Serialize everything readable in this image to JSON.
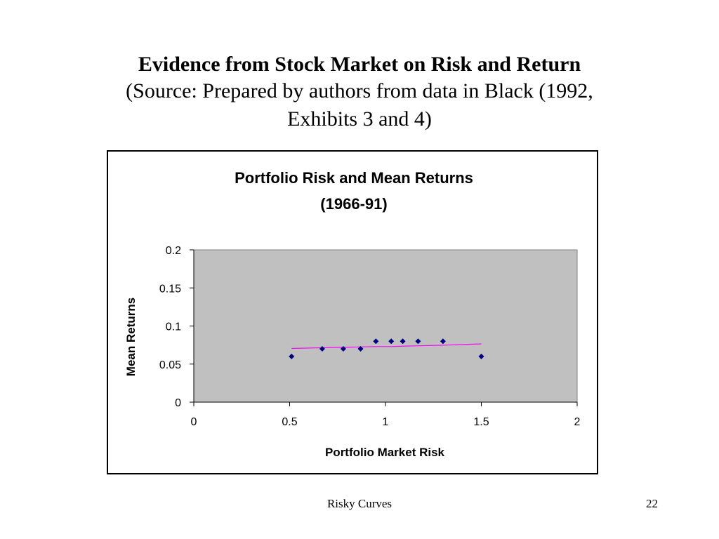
{
  "slide": {
    "title": "Evidence from Stock Market on Risk and Return",
    "subtitle_line1": "(Source: Prepared by authors from data in Black (1992,",
    "subtitle_line2": "Exhibits 3 and 4)",
    "footer_text": "Risky Curves",
    "page_number": "22"
  },
  "chart_data": {
    "type": "scatter",
    "title_line1": "Portfolio Risk and Mean Returns",
    "title_line2": "(1966-91)",
    "xlabel": "Portfolio Market Risk",
    "ylabel": "Mean Returns",
    "xlim": [
      0,
      2
    ],
    "ylim": [
      0,
      0.2
    ],
    "x_ticks": [
      0,
      0.5,
      1,
      1.5,
      2
    ],
    "x_tick_labels": [
      "0",
      "0.5",
      "1",
      "1.5",
      "2"
    ],
    "y_ticks": [
      0,
      0.05,
      0.1,
      0.15,
      0.2
    ],
    "y_tick_labels": [
      "0",
      "0.05",
      "0.1",
      "0.15",
      "0.2"
    ],
    "grid": false,
    "legend": "none",
    "plot_area_color": "#C0C0C0",
    "series": [
      {
        "marker": "diamond",
        "color": "#000080",
        "points": [
          {
            "x": 0.51,
            "y": 0.06
          },
          {
            "x": 0.67,
            "y": 0.07
          },
          {
            "x": 0.78,
            "y": 0.07
          },
          {
            "x": 0.87,
            "y": 0.07
          },
          {
            "x": 0.95,
            "y": 0.08
          },
          {
            "x": 1.03,
            "y": 0.08
          },
          {
            "x": 1.09,
            "y": 0.08
          },
          {
            "x": 1.17,
            "y": 0.08
          },
          {
            "x": 1.3,
            "y": 0.08
          },
          {
            "x": 1.5,
            "y": 0.06
          }
        ]
      }
    ],
    "trendline": {
      "color": "#FF00FF",
      "points": [
        {
          "x": 0.51,
          "y": 0.0705
        },
        {
          "x": 0.67,
          "y": 0.0715
        },
        {
          "x": 0.78,
          "y": 0.072
        },
        {
          "x": 0.87,
          "y": 0.0725
        },
        {
          "x": 0.95,
          "y": 0.073
        },
        {
          "x": 1.03,
          "y": 0.073
        },
        {
          "x": 1.09,
          "y": 0.0735
        },
        {
          "x": 1.17,
          "y": 0.074
        },
        {
          "x": 1.3,
          "y": 0.0748
        },
        {
          "x": 1.5,
          "y": 0.0765
        }
      ]
    }
  }
}
